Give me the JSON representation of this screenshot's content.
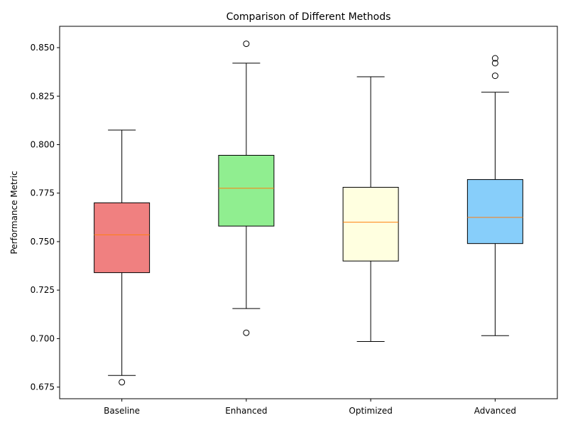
{
  "chart_data": {
    "type": "boxplot",
    "title": "Comparison of Different Methods",
    "xlabel": "",
    "ylabel": "Performance Metric",
    "ylim": [
      0.669,
      0.861
    ],
    "yticks": [
      0.675,
      0.7,
      0.725,
      0.75,
      0.775,
      0.8,
      0.825,
      0.85
    ],
    "ytick_labels": [
      "0.675",
      "0.700",
      "0.725",
      "0.750",
      "0.775",
      "0.800",
      "0.825",
      "0.850"
    ],
    "grid": false,
    "categories": [
      "Baseline",
      "Enhanced",
      "Optimized",
      "Advanced"
    ],
    "boxes": [
      {
        "category": "Baseline",
        "whisker_low": 0.681,
        "q1": 0.734,
        "median": 0.7535,
        "q3": 0.77,
        "whisker_high": 0.8075,
        "outliers": [
          0.6775
        ],
        "color": "#f08080"
      },
      {
        "category": "Enhanced",
        "whisker_low": 0.7155,
        "q1": 0.758,
        "median": 0.7775,
        "q3": 0.7945,
        "whisker_high": 0.842,
        "outliers": [
          0.852,
          0.703
        ],
        "color": "#90ee90"
      },
      {
        "category": "Optimized",
        "whisker_low": 0.6985,
        "q1": 0.74,
        "median": 0.76,
        "q3": 0.778,
        "whisker_high": 0.835,
        "outliers": [],
        "color": "#ffffe0"
      },
      {
        "category": "Advanced",
        "whisker_low": 0.7015,
        "q1": 0.749,
        "median": 0.7625,
        "q3": 0.782,
        "whisker_high": 0.827,
        "outliers": [
          0.8445,
          0.842,
          0.8355
        ],
        "color": "#87cefa"
      }
    ],
    "median_color": "#ff7f0e",
    "outlier_marker": "open-circle"
  }
}
